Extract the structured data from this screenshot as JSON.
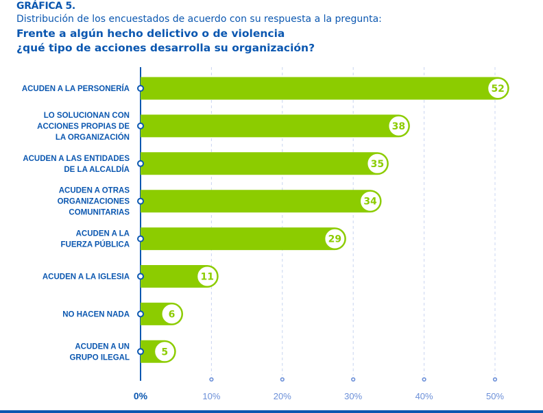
{
  "header": {
    "label": "GRÁFICA 5.",
    "subtitle": "Distribución de los encuestados de acuerdo con su respuesta a la pregunta:",
    "question_line1": "Frente a algún hecho delictivo o de violencia",
    "question_line2": "¿qué tipo de acciones desarrolla su organización?"
  },
  "chart_data": {
    "type": "bar",
    "orientation": "horizontal",
    "categories": [
      [
        "ACUDEN A LA PERSONERÍA"
      ],
      [
        "LO SOLUCIONAN CON",
        "ACCIONES PROPIAS DE",
        "LA ORGANIZACIÓN"
      ],
      [
        "ACUDEN A LAS ENTIDADES",
        "DE LA ALCALDÍA"
      ],
      [
        "ACUDEN A OTRAS",
        "ORGANIZACIONES",
        "COMUNITARIAS"
      ],
      [
        "ACUDEN A LA",
        "FUERZA PÚBLICA"
      ],
      [
        "ACUDEN A LA IGLESIA"
      ],
      [
        "NO HACEN NADA"
      ],
      [
        "ACUDEN A UN",
        "GRUPO ILEGAL"
      ]
    ],
    "values": [
      52,
      38,
      35,
      34,
      29,
      11,
      6,
      5
    ],
    "xlim": [
      0,
      50
    ],
    "xticks": [
      "0%",
      "10%",
      "20%",
      "30%",
      "40%",
      "50%"
    ],
    "grid": true,
    "colors": {
      "bar": "#8ccc00",
      "axis": "#0b57b0",
      "tick": "#6b8fd8"
    }
  }
}
